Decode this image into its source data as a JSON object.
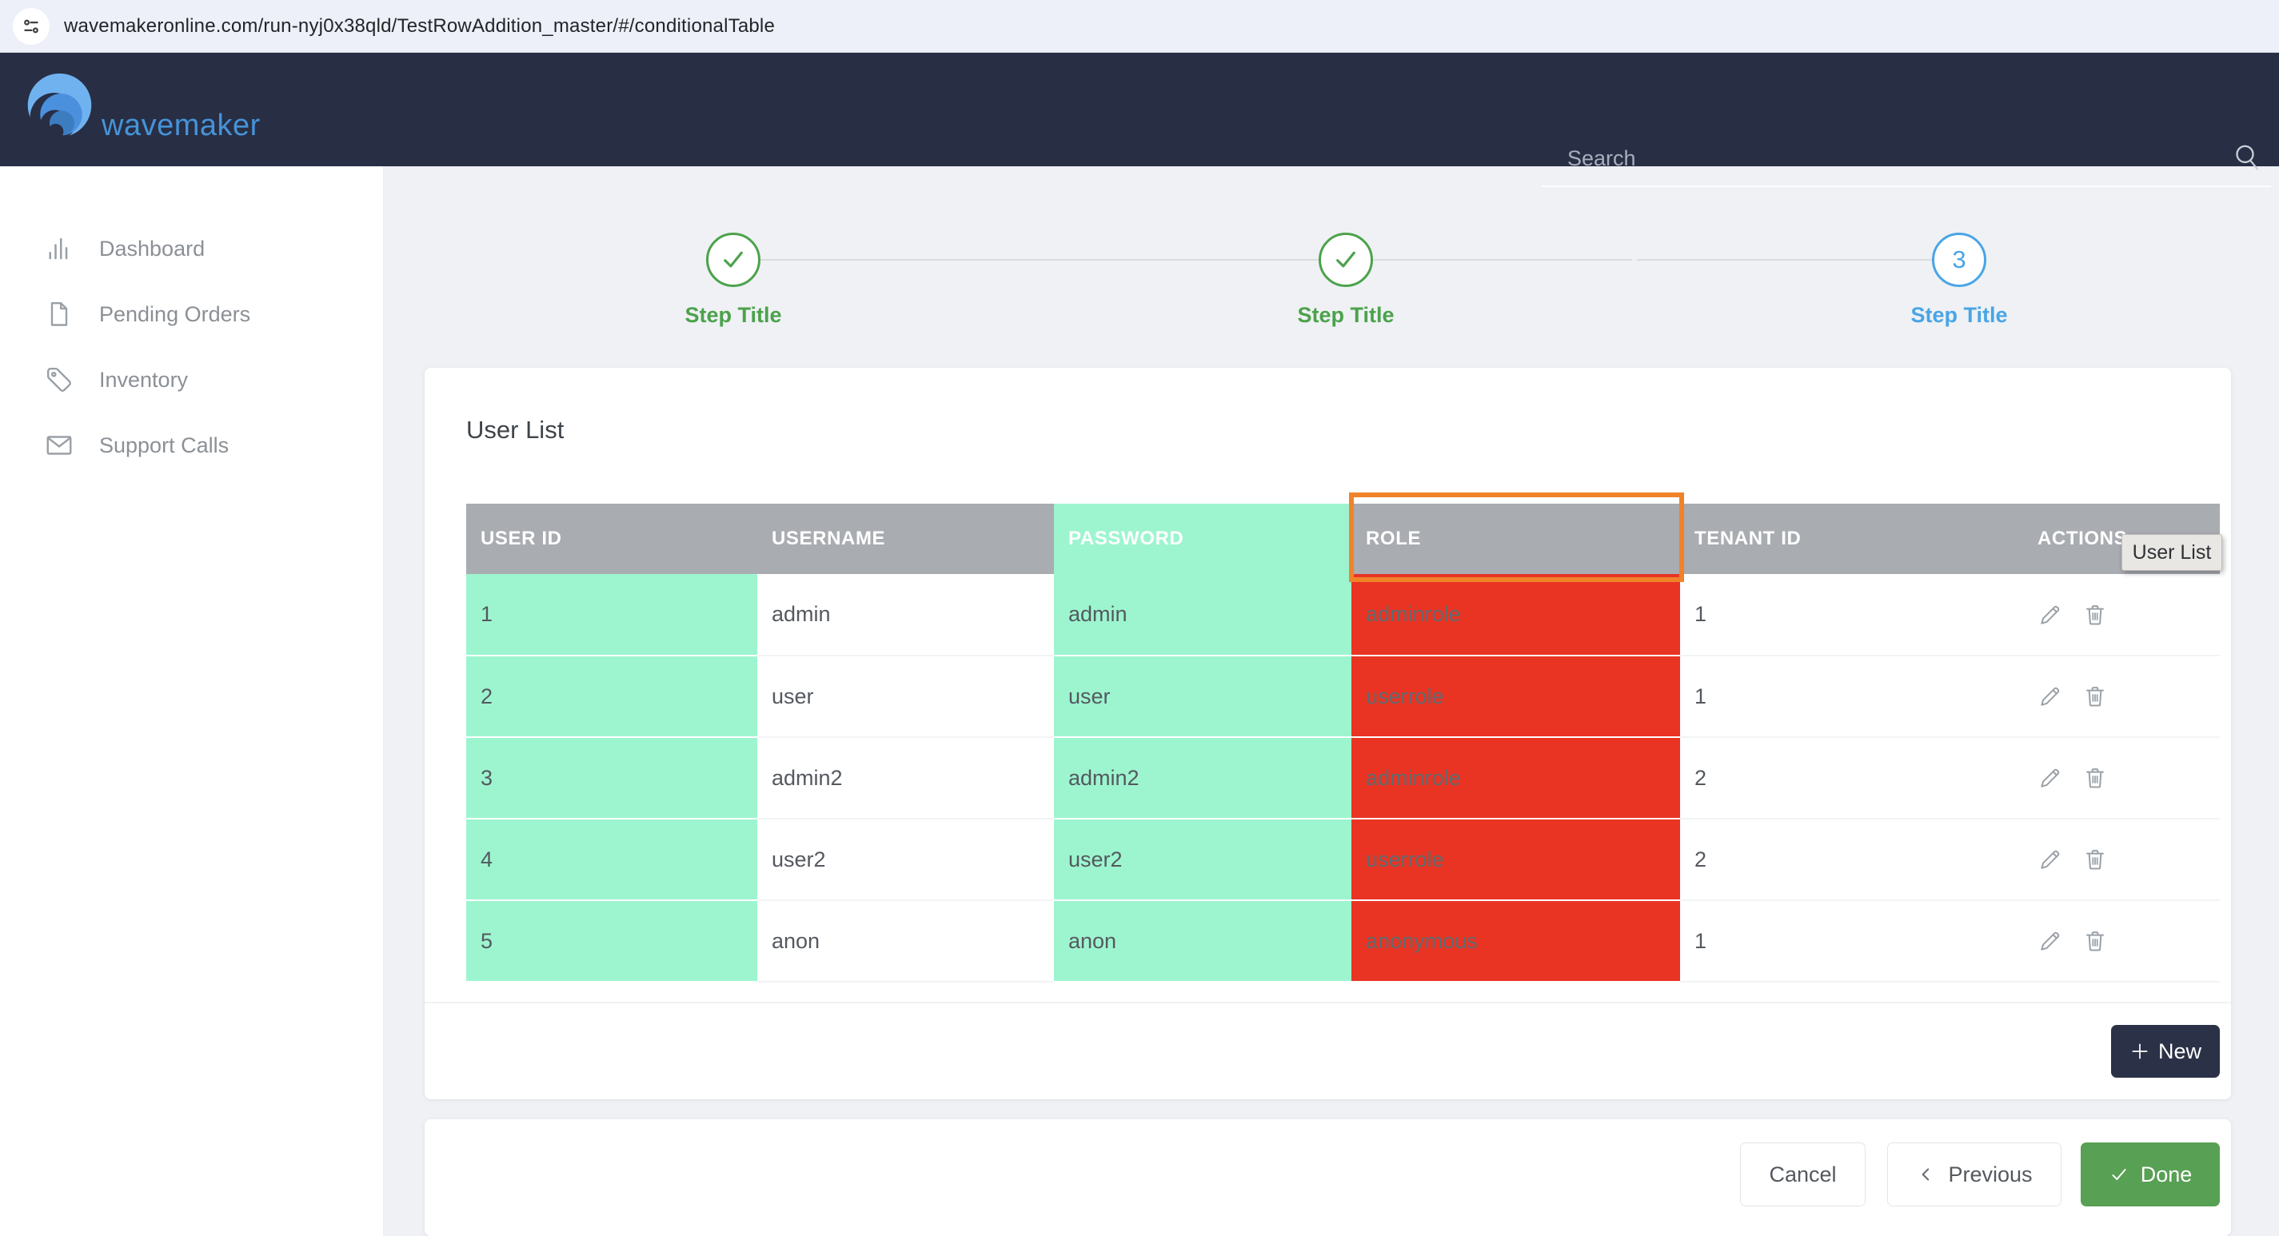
{
  "browser": {
    "url": "wavemakeronline.com/run-nyj0x38qld/TestRowAddition_master/#/conditionalTable"
  },
  "topnav": {
    "brand": "wavemaker",
    "search_placeholder": "Search"
  },
  "sidebar": {
    "items": [
      {
        "label": "Dashboard",
        "icon": "bar-chart-icon"
      },
      {
        "label": "Pending Orders",
        "icon": "document-icon"
      },
      {
        "label": "Inventory",
        "icon": "tag-icon"
      },
      {
        "label": "Support Calls",
        "icon": "envelope-icon"
      }
    ]
  },
  "stepper": {
    "steps": [
      {
        "title": "Step Title",
        "state": "done"
      },
      {
        "title": "Step Title",
        "state": "done"
      },
      {
        "title": "Step Title",
        "state": "active",
        "number": "3"
      }
    ]
  },
  "user_list": {
    "title": "User List",
    "tooltip": "User List",
    "new_button_label": "New",
    "columns": [
      {
        "label": "USER ID",
        "cell_style": "green",
        "header_style": "gray"
      },
      {
        "label": "USERNAME",
        "cell_style": "plain",
        "header_style": "gray"
      },
      {
        "label": "PASSWORD",
        "cell_style": "green",
        "header_style": "green"
      },
      {
        "label": "ROLE",
        "cell_style": "red",
        "header_style": "gray",
        "highlighted": true
      },
      {
        "label": "TENANT ID",
        "cell_style": "plain",
        "header_style": "gray"
      },
      {
        "label": "ACTIONS",
        "cell_style": "actions",
        "header_style": "gray"
      }
    ],
    "rows": [
      [
        "1",
        "admin",
        "admin",
        "adminrole",
        "1"
      ],
      [
        "2",
        "user",
        "user",
        "userrole",
        "1"
      ],
      [
        "3",
        "admin2",
        "admin2",
        "adminrole",
        "2"
      ],
      [
        "4",
        "user2",
        "user2",
        "userrole",
        "2"
      ],
      [
        "5",
        "anon",
        "anon",
        "anonymous",
        "1"
      ]
    ]
  },
  "wizard": {
    "cancel_label": "Cancel",
    "previous_label": "Previous",
    "done_label": "Done"
  },
  "colors": {
    "navy_header": "#282e44",
    "brand_blue": "#4593d8",
    "mint_cell": "#9df5cf",
    "red_cell": "#e93423",
    "table_header_gray": "#a9acb1",
    "highlight_orange": "#f0832a",
    "step_green": "#4ca24c",
    "step_blue": "#49a5e6",
    "done_green": "#58a053",
    "new_button_navy": "#2b3146"
  }
}
